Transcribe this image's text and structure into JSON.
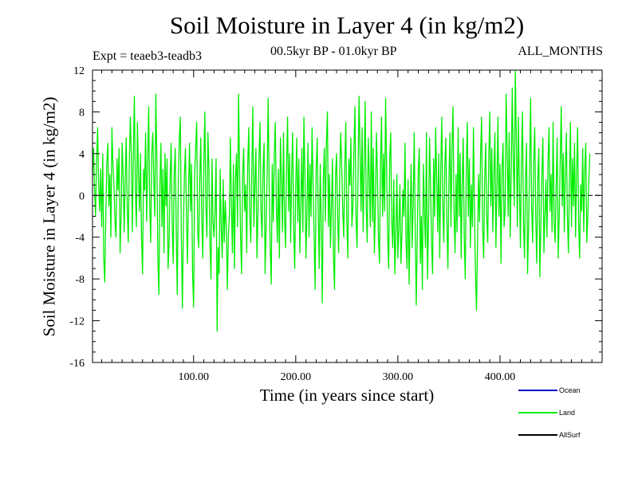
{
  "chart_data": {
    "type": "line",
    "title": "Soil Moisture in Layer 4 (in kg/m2)",
    "experiment": "Expt = teaeb3-teadb3",
    "period": "00.5kyr BP - 01.0kyr BP",
    "months": "ALL_MONTHS",
    "xlabel": "Time (in years since start)",
    "ylabel": "Soil Moisture in Layer 4 (in kg/m2)",
    "xlim": [
      1,
      500
    ],
    "ylim": [
      -16,
      12
    ],
    "x_ticks": [
      100,
      200,
      300,
      400
    ],
    "x_tick_labels": [
      "100.00",
      "200.00",
      "300.00",
      "400.00"
    ],
    "y_ticks": [
      -16,
      -12,
      -8,
      -4,
      0,
      4,
      8,
      12
    ],
    "y_tick_labels": [
      "-16",
      "-12",
      "-8",
      "-4",
      "0",
      "4",
      "8",
      "12"
    ],
    "zero_line": 0,
    "legend": [
      {
        "name": "Ocean",
        "color": "#0000cc"
      },
      {
        "name": "Land",
        "color": "#00ee00"
      },
      {
        "name": "AllSurf",
        "color": "#000000"
      }
    ],
    "series": [
      {
        "name": "Land",
        "color": "#00ee00",
        "x_start": 1,
        "x_step": 1,
        "values": [
          2.0,
          4.5,
          0.5,
          -2.0,
          3.5,
          6.5,
          1.0,
          -1.5,
          2.5,
          -3.0,
          4.0,
          -6.0,
          -8.3,
          -2.0,
          3.0,
          5.0,
          -1.0,
          2.0,
          -4.0,
          6.5,
          3.0,
          1.0,
          -2.5,
          -4.0,
          3.5,
          0.5,
          4.5,
          -5.5,
          -2.0,
          5.0,
          2.0,
          -3.5,
          1.5,
          5.5,
          -1.0,
          -4.5,
          3.0,
          7.5,
          4.0,
          -3.5,
          4.0,
          9.5,
          0.5,
          -3.0,
          7.0,
          2.0,
          -1.5,
          4.0,
          -4.0,
          -7.5,
          2.5,
          0.5,
          6.0,
          -2.5,
          3.0,
          8.5,
          -1.0,
          -4.5,
          4.0,
          6.0,
          1.5,
          -2.0,
          9.7,
          3.5,
          -6.0,
          -9.5,
          1.0,
          5.0,
          -3.0,
          2.5,
          -5.5,
          4.0,
          -1.0,
          3.5,
          -7.0,
          -4.5,
          1.5,
          5.0,
          -2.5,
          -6.5,
          2.0,
          4.5,
          -3.5,
          -9.5,
          1.0,
          5.5,
          7.5,
          -4.0,
          -10.8,
          -3.0,
          2.0,
          4.5,
          -2.0,
          -6.5,
          0.5,
          5.0,
          -1.5,
          3.0,
          -7.5,
          -10.7,
          2.0,
          4.5,
          7.0,
          -3.5,
          -5.0,
          1.5,
          5.5,
          -2.0,
          -6.0,
          3.0,
          8.0,
          -1.0,
          -4.0,
          6.0,
          2.5,
          -4.5,
          -8.0,
          3.5,
          -2.5,
          -4.0,
          -1.5,
          3.5,
          -13.0,
          -5.0,
          -7.5,
          2.5,
          -3.0,
          -6.0,
          1.5,
          -4.5,
          -0.5,
          -3.0,
          -9.0,
          -4.0,
          -2.0,
          5.5,
          -1.0,
          -5.5,
          3.0,
          -7.0,
          1.5,
          4.0,
          -3.0,
          9.7,
          2.5,
          -4.0,
          -7.5,
          2.0,
          4.5,
          -1.5,
          1.0,
          -5.5,
          3.0,
          6.5,
          -2.0,
          -4.5,
          2.5,
          8.5,
          -3.0,
          1.0,
          4.5,
          -6.0,
          -2.0,
          3.5,
          7.0,
          -1.5,
          -4.0,
          2.5,
          5.0,
          -7.5,
          -3.0,
          2.0,
          9.3,
          1.0,
          -5.0,
          -8.5,
          3.0,
          -2.5,
          4.0,
          7.0,
          -1.0,
          -4.5,
          2.5,
          -6.0,
          5.5,
          1.5,
          -3.5,
          6.0,
          -2.0,
          -5.0,
          3.0,
          7.5,
          -1.5,
          4.0,
          -4.5,
          2.0,
          6.0,
          -3.0,
          -7.0,
          1.0,
          5.5,
          -2.5,
          3.5,
          -5.5,
          -1.0,
          4.5,
          -3.5,
          7.5,
          2.0,
          -6.0,
          -1.5,
          5.0,
          -4.0,
          3.0,
          -2.0,
          6.5,
          1.0,
          -4.0,
          -9.0,
          2.5,
          5.5,
          -1.5,
          -7.0,
          3.0,
          -3.0,
          -10.3,
          1.5,
          4.5,
          -2.5,
          5.0,
          8.0,
          -3.0,
          2.0,
          -5.0,
          -1.0,
          3.5,
          -6.0,
          -9.0,
          2.0,
          4.0,
          -2.0,
          -5.5,
          1.5,
          6.0,
          3.0,
          -1.5,
          -4.0,
          2.5,
          7.0,
          -2.5,
          -6.0,
          3.5,
          1.0,
          5.5,
          -3.0,
          -1.0,
          4.5,
          8.5,
          -2.0,
          -5.0,
          2.0,
          9.5,
          4.0,
          -1.5,
          6.5,
          -3.5,
          3.0,
          9.0,
          -1.0,
          -4.5,
          5.5,
          2.0,
          -3.0,
          8.0,
          -2.5,
          4.5,
          -5.5,
          -1.0,
          6.0,
          2.0,
          -4.0,
          -6.5,
          3.0,
          7.5,
          -2.0,
          4.0,
          -1.5,
          9.3,
          2.5,
          -4.0,
          -7.0,
          3.5,
          6.0,
          -2.5,
          -5.0,
          1.5,
          -7.5,
          -4.0,
          2.0,
          -6.0,
          -3.0,
          1.0,
          -6.5,
          -3.5,
          0.5,
          -2.0,
          5.0,
          -4.5,
          -7.0,
          1.5,
          -8.5,
          -2.5,
          3.0,
          -5.0,
          -1.0,
          6.0,
          -3.5,
          -10.5,
          -4.0,
          2.5,
          4.5,
          -6.5,
          -2.0,
          -9.0,
          3.0,
          -1.5,
          -5.0,
          6.0,
          -8.0,
          -3.0,
          5.5,
          1.0,
          -4.5,
          -7.5,
          3.5,
          -2.0,
          6.5,
          1.5,
          -3.5,
          4.0,
          -6.0,
          2.5,
          7.5,
          -1.0,
          -4.5,
          3.0,
          5.5,
          -2.5,
          -7.0,
          1.5,
          6.0,
          -3.0,
          4.5,
          8.5,
          -1.5,
          -5.5,
          2.0,
          -3.5,
          6.5,
          -2.0,
          4.0,
          -6.0,
          1.0,
          5.5,
          -4.0,
          -8.0,
          2.5,
          7.0,
          -2.0,
          3.5,
          -5.0,
          1.0,
          -3.0,
          6.5,
          -1.5,
          -7.5,
          -11.0,
          -4.5,
          2.0,
          -2.5,
          4.0,
          7.5,
          -3.0,
          -6.0,
          1.5,
          5.0,
          -2.0,
          -4.5,
          3.5,
          8.0,
          -1.0,
          4.5,
          -3.5,
          2.0,
          6.0,
          -5.0,
          1.0,
          7.5,
          -2.0,
          3.0,
          -6.5,
          2.5,
          5.0,
          -3.0,
          -1.5,
          9.7,
          4.5,
          -2.0,
          6.0,
          -4.0,
          2.0,
          10.3,
          3.5,
          -1.0,
          12.0,
          5.5,
          -3.0,
          7.5,
          1.0,
          -5.0,
          3.5,
          8.0,
          -2.5,
          -6.0,
          1.5,
          5.0,
          -7.5,
          -3.0,
          2.5,
          9.3,
          -1.0,
          -4.5,
          3.0,
          6.5,
          -2.0,
          -6.5,
          1.5,
          4.5,
          -7.8,
          -3.0,
          2.0,
          5.5,
          -5.5,
          -2.0,
          1.5,
          -4.0,
          3.0,
          6.5,
          -1.5,
          2.0,
          -3.5,
          7.0,
          -2.5,
          -4.5,
          1.0,
          5.5,
          -6.0,
          -2.0,
          3.5,
          8.5,
          -1.0,
          4.0,
          -3.5,
          2.5,
          6.0,
          -2.0,
          -5.5,
          1.5,
          7.0,
          -3.0,
          3.5,
          -1.0,
          5.0,
          -4.0,
          2.0,
          6.5,
          -2.5,
          -6.0,
          1.0,
          -1.5,
          4.5,
          -3.5,
          2.5,
          5.0,
          -4.5,
          -2.0,
          1.5,
          4.0
        ]
      }
    ]
  }
}
